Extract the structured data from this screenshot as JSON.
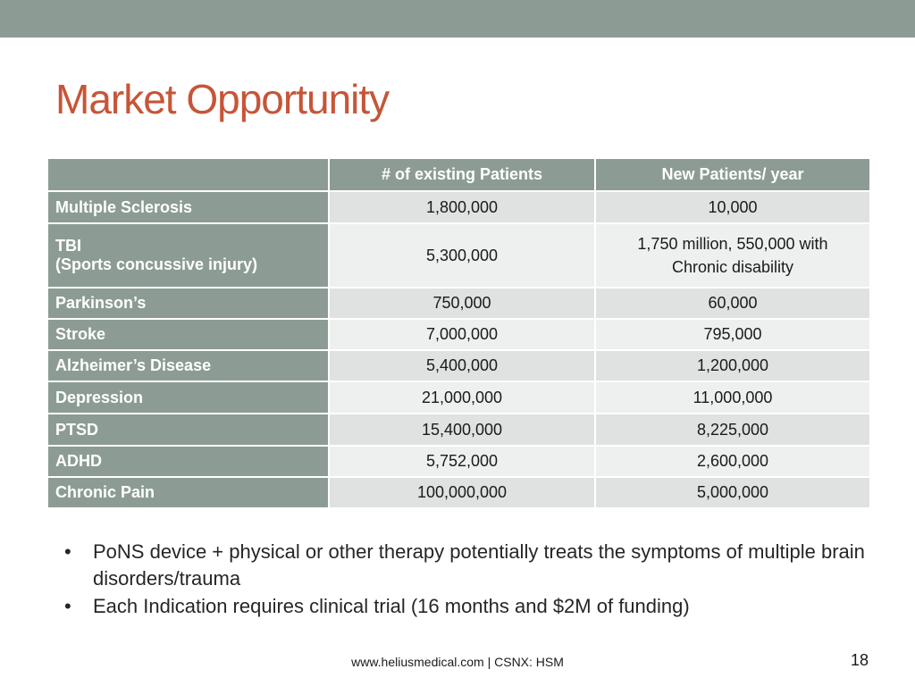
{
  "slide": {
    "title": "Market Opportunity",
    "footer": "www.heliusmedical.com |  CSNX: HSM",
    "page_number": "18",
    "colors": {
      "accent": "#c65538",
      "header_band": "#8c9c94"
    }
  },
  "table": {
    "headers": [
      "",
      "# of existing  Patients",
      "New Patients/ year"
    ],
    "rows": [
      {
        "label": [
          "Multiple Sclerosis"
        ],
        "existing": "1,800,000",
        "new": [
          "10,000"
        ]
      },
      {
        "label": [
          "TBI",
          "(Sports concussive injury)"
        ],
        "existing": "5,300,000",
        "new": [
          "1,750 million, 550,000 with",
          "Chronic disability"
        ]
      },
      {
        "label": [
          "Parkinson’s"
        ],
        "existing": "750,000",
        "new": [
          "60,000"
        ]
      },
      {
        "label": [
          "Stroke"
        ],
        "existing": "7,000,000",
        "new": [
          "795,000"
        ]
      },
      {
        "label": [
          "Alzheimer’s Disease"
        ],
        "existing": "5,400,000",
        "new": [
          "1,200,000"
        ]
      },
      {
        "label": [
          "Depression"
        ],
        "existing": "21,000,000",
        "new": [
          "11,000,000"
        ]
      },
      {
        "label": [
          "PTSD"
        ],
        "existing": "15,400,000",
        "new": [
          "8,225,000"
        ]
      },
      {
        "label": [
          "ADHD"
        ],
        "existing": "5,752,000",
        "new": [
          "2,600,000"
        ]
      },
      {
        "label": [
          "Chronic Pain"
        ],
        "existing": "100,000,000",
        "new": [
          "5,000,000"
        ]
      }
    ]
  },
  "bullets": [
    "PoNS device + physical or other therapy potentially treats the symptoms of multiple brain disorders/trauma",
    "Each Indication requires clinical trial (16 months and $2M of funding)"
  ]
}
